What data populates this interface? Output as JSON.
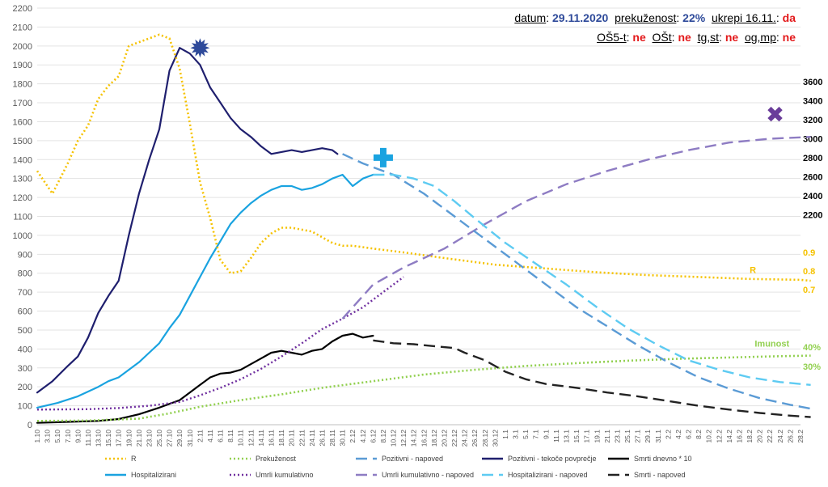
{
  "header": {
    "line1": [
      {
        "label": "datum",
        "sep": ": ",
        "value": "29.11.2020",
        "color": "blue"
      },
      {
        "label": "prekuženost",
        "sep": ": ",
        "value": "22%",
        "color": "blue"
      },
      {
        "label": "ukrepi 16.11.",
        "sep": ": ",
        "value": "da",
        "color": "red"
      }
    ],
    "line2": [
      {
        "label": "OŠ5-t",
        "sep": ": ",
        "value": "ne",
        "color": "red"
      },
      {
        "label": "OŠt",
        "sep": ": ",
        "value": "ne",
        "color": "red"
      },
      {
        "label": "tg,st",
        "sep": ": ",
        "value": "ne",
        "color": "red"
      },
      {
        "label": "og,mp",
        "sep": ": ",
        "value": "ne",
        "color": "red"
      }
    ]
  },
  "chart_data": {
    "type": "line",
    "title": "",
    "y_left": {
      "min": 0,
      "max": 2200,
      "step": 100
    },
    "y_right_top": {
      "ticks": [
        2200,
        2400,
        2600,
        2800,
        3000,
        3200,
        3400,
        3600
      ]
    },
    "y_right_R": {
      "ticks": [
        0.7,
        0.8,
        0.9
      ]
    },
    "y_right_pct": {
      "ticks": [
        "30%",
        "40%"
      ]
    },
    "x_labels": [
      "1.10",
      "3.10",
      "5.10",
      "7.10",
      "9.10",
      "11.10",
      "13.10",
      "15.10",
      "17.10",
      "19.10",
      "21.10",
      "23.10",
      "25.10",
      "27.10",
      "29.10",
      "31.10",
      "2.11",
      "4.11",
      "6.11",
      "8.11",
      "10.11",
      "12.11",
      "14.11",
      "16.11",
      "18.11",
      "20.11",
      "22.11",
      "24.11",
      "26.11",
      "28.11",
      "30.11",
      "2.12",
      "4.12",
      "6.12",
      "8.12",
      "10.12",
      "12.12",
      "14.12",
      "16.12",
      "18.12",
      "20.12",
      "22.12",
      "24.12",
      "26.12",
      "28.12",
      "30.12",
      "1.1",
      "3.1",
      "5.1",
      "7.1",
      "9.1",
      "11.1",
      "13.1",
      "15.1",
      "17.1",
      "19.1",
      "21.1",
      "23.1",
      "25.1",
      "27.1",
      "29.1",
      "31.1",
      "2.2",
      "4.2",
      "6.2",
      "8.2",
      "10.2",
      "12.2",
      "14.2",
      "16.2",
      "18.2",
      "20.2",
      "22.2",
      "24.2",
      "26.2",
      "28.2"
    ],
    "series": [
      {
        "name": "Pozitivni - tekoče povprečje",
        "color": "#1f1f6e",
        "dash": "",
        "width": 2.2,
        "axis": "left",
        "points": [
          [
            0,
            170
          ],
          [
            3,
            230
          ],
          [
            6,
            310
          ],
          [
            8,
            360
          ],
          [
            10,
            460
          ],
          [
            12,
            590
          ],
          [
            14,
            680
          ],
          [
            16,
            760
          ],
          [
            18,
            1000
          ],
          [
            20,
            1220
          ],
          [
            22,
            1400
          ],
          [
            24,
            1560
          ],
          [
            26,
            1870
          ],
          [
            28,
            1990
          ],
          [
            30,
            1960
          ],
          [
            32,
            1900
          ],
          [
            34,
            1780
          ],
          [
            36,
            1700
          ],
          [
            38,
            1620
          ],
          [
            40,
            1560
          ],
          [
            42,
            1520
          ],
          [
            44,
            1470
          ],
          [
            46,
            1430
          ],
          [
            48,
            1440
          ],
          [
            50,
            1450
          ],
          [
            52,
            1440
          ],
          [
            54,
            1450
          ],
          [
            56,
            1460
          ],
          [
            58,
            1450
          ],
          [
            59,
            1430
          ]
        ]
      },
      {
        "name": "Hospitalizirani",
        "color": "#1aa3e0",
        "dash": "",
        "width": 2.2,
        "axis": "left",
        "points": [
          [
            0,
            90
          ],
          [
            4,
            115
          ],
          [
            8,
            150
          ],
          [
            12,
            200
          ],
          [
            14,
            230
          ],
          [
            16,
            250
          ],
          [
            18,
            290
          ],
          [
            20,
            330
          ],
          [
            22,
            380
          ],
          [
            24,
            430
          ],
          [
            26,
            510
          ],
          [
            28,
            580
          ],
          [
            30,
            680
          ],
          [
            32,
            780
          ],
          [
            34,
            880
          ],
          [
            36,
            970
          ],
          [
            38,
            1060
          ],
          [
            40,
            1120
          ],
          [
            42,
            1170
          ],
          [
            44,
            1210
          ],
          [
            46,
            1240
          ],
          [
            48,
            1260
          ],
          [
            50,
            1260
          ],
          [
            52,
            1240
          ],
          [
            54,
            1250
          ],
          [
            56,
            1270
          ],
          [
            58,
            1300
          ],
          [
            60,
            1320
          ],
          [
            62,
            1260
          ],
          [
            64,
            1300
          ],
          [
            66,
            1320
          ]
        ]
      },
      {
        "name": "Smrti dnevno * 10",
        "color": "#000000",
        "dash": "",
        "width": 2.2,
        "axis": "left",
        "points": [
          [
            0,
            10
          ],
          [
            6,
            15
          ],
          [
            12,
            20
          ],
          [
            16,
            30
          ],
          [
            20,
            55
          ],
          [
            24,
            90
          ],
          [
            28,
            130
          ],
          [
            32,
            210
          ],
          [
            34,
            250
          ],
          [
            36,
            270
          ],
          [
            38,
            275
          ],
          [
            40,
            290
          ],
          [
            42,
            320
          ],
          [
            44,
            350
          ],
          [
            46,
            380
          ],
          [
            48,
            390
          ],
          [
            50,
            380
          ],
          [
            52,
            370
          ],
          [
            54,
            390
          ],
          [
            56,
            400
          ],
          [
            58,
            440
          ],
          [
            60,
            470
          ],
          [
            62,
            480
          ],
          [
            64,
            460
          ],
          [
            66,
            470
          ]
        ]
      },
      {
        "name": "R",
        "color": "#f5c200",
        "dash": "2,3",
        "width": 2.6,
        "axis": "left",
        "points": [
          [
            0,
            1340
          ],
          [
            3,
            1220
          ],
          [
            6,
            1380
          ],
          [
            8,
            1500
          ],
          [
            10,
            1580
          ],
          [
            12,
            1720
          ],
          [
            14,
            1790
          ],
          [
            16,
            1840
          ],
          [
            18,
            2000
          ],
          [
            20,
            2020
          ],
          [
            22,
            2040
          ],
          [
            24,
            2060
          ],
          [
            26,
            2040
          ],
          [
            28,
            1880
          ],
          [
            30,
            1590
          ],
          [
            32,
            1280
          ],
          [
            34,
            1090
          ],
          [
            36,
            870
          ],
          [
            38,
            800
          ],
          [
            40,
            810
          ],
          [
            42,
            880
          ],
          [
            44,
            960
          ],
          [
            46,
            1010
          ],
          [
            48,
            1040
          ],
          [
            50,
            1040
          ],
          [
            52,
            1030
          ],
          [
            54,
            1020
          ],
          [
            56,
            990
          ],
          [
            58,
            960
          ],
          [
            60,
            945
          ],
          [
            62,
            945
          ],
          [
            66,
            930
          ],
          [
            72,
            910
          ],
          [
            80,
            880
          ],
          [
            90,
            845
          ],
          [
            100,
            825
          ],
          [
            110,
            805
          ],
          [
            120,
            790
          ],
          [
            130,
            780
          ],
          [
            140,
            770
          ],
          [
            150,
            765
          ],
          [
            152,
            760
          ]
        ]
      },
      {
        "name": "Prekuženost",
        "color": "#92d050",
        "dash": "2,3",
        "width": 2.6,
        "axis": "left",
        "points": [
          [
            0,
            20
          ],
          [
            10,
            22
          ],
          [
            20,
            32
          ],
          [
            26,
            60
          ],
          [
            32,
            95
          ],
          [
            40,
            130
          ],
          [
            48,
            160
          ],
          [
            56,
            195
          ],
          [
            66,
            230
          ],
          [
            76,
            265
          ],
          [
            86,
            290
          ],
          [
            96,
            310
          ],
          [
            106,
            325
          ],
          [
            116,
            338
          ],
          [
            126,
            348
          ],
          [
            136,
            355
          ],
          [
            146,
            362
          ],
          [
            152,
            365
          ]
        ]
      },
      {
        "name": "Umrli kumulativno",
        "color": "#7030a0",
        "dash": "2,3",
        "width": 2.4,
        "axis": "left",
        "points": [
          [
            0,
            80
          ],
          [
            10,
            82
          ],
          [
            16,
            88
          ],
          [
            22,
            100
          ],
          [
            28,
            120
          ],
          [
            32,
            155
          ],
          [
            36,
            195
          ],
          [
            40,
            240
          ],
          [
            44,
            295
          ],
          [
            48,
            360
          ],
          [
            52,
            430
          ],
          [
            56,
            505
          ],
          [
            60,
            560
          ],
          [
            64,
            620
          ],
          [
            68,
            700
          ],
          [
            72,
            780
          ]
        ]
      },
      {
        "name": "Umrli kumulativno - napoved",
        "color": "#8e7cc3",
        "dash": "14,7",
        "width": 2.4,
        "axis": "left",
        "points": [
          [
            60,
            560
          ],
          [
            66,
            740
          ],
          [
            72,
            830
          ],
          [
            80,
            930
          ],
          [
            88,
            1060
          ],
          [
            96,
            1180
          ],
          [
            104,
            1270
          ],
          [
            112,
            1340
          ],
          [
            120,
            1400
          ],
          [
            128,
            1450
          ],
          [
            136,
            1490
          ],
          [
            144,
            1510
          ],
          [
            152,
            1520
          ]
        ]
      },
      {
        "name": "Pozitivni - napoved",
        "color": "#5b9bd5",
        "dash": "14,7",
        "width": 2.4,
        "axis": "left",
        "points": [
          [
            60,
            1430
          ],
          [
            64,
            1380
          ],
          [
            70,
            1320
          ],
          [
            76,
            1220
          ],
          [
            82,
            1100
          ],
          [
            88,
            980
          ],
          [
            94,
            860
          ],
          [
            100,
            740
          ],
          [
            106,
            620
          ],
          [
            112,
            520
          ],
          [
            118,
            420
          ],
          [
            124,
            330
          ],
          [
            130,
            250
          ],
          [
            136,
            190
          ],
          [
            142,
            140
          ],
          [
            148,
            105
          ],
          [
            152,
            85
          ]
        ]
      },
      {
        "name": "Hospitalizirani - napoved",
        "color": "#5ecbf2",
        "dash": "14,7",
        "width": 2.4,
        "axis": "left",
        "points": [
          [
            66,
            1320
          ],
          [
            70,
            1320
          ],
          [
            74,
            1300
          ],
          [
            78,
            1260
          ],
          [
            82,
            1180
          ],
          [
            86,
            1090
          ],
          [
            92,
            960
          ],
          [
            98,
            850
          ],
          [
            104,
            740
          ],
          [
            110,
            620
          ],
          [
            116,
            510
          ],
          [
            122,
            420
          ],
          [
            128,
            340
          ],
          [
            134,
            290
          ],
          [
            140,
            250
          ],
          [
            146,
            225
          ],
          [
            152,
            210
          ]
        ]
      },
      {
        "name": "Smrti - napoved",
        "color": "#222222",
        "dash": "14,7",
        "width": 2.4,
        "axis": "left",
        "points": [
          [
            66,
            445
          ],
          [
            70,
            430
          ],
          [
            74,
            425
          ],
          [
            78,
            415
          ],
          [
            82,
            405
          ],
          [
            84,
            380
          ],
          [
            88,
            340
          ],
          [
            92,
            280
          ],
          [
            96,
            240
          ],
          [
            100,
            215
          ],
          [
            106,
            195
          ],
          [
            112,
            170
          ],
          [
            118,
            150
          ],
          [
            124,
            125
          ],
          [
            130,
            100
          ],
          [
            136,
            80
          ],
          [
            142,
            62
          ],
          [
            148,
            48
          ],
          [
            152,
            40
          ]
        ]
      }
    ],
    "annotations": [
      {
        "text": "R",
        "color": "#f5c200",
        "at": [
          140,
          800
        ]
      },
      {
        "text": "Imunost",
        "color": "#92d050",
        "at": [
          141,
          412
        ]
      }
    ],
    "markers": [
      {
        "symbol": "starburst",
        "color": "#2e4a9a",
        "at": [
          32,
          1990
        ]
      },
      {
        "symbol": "plus",
        "color": "#1aa3e0",
        "at": [
          68,
          1410
        ]
      },
      {
        "symbol": "cross",
        "color": "#6a3d9a",
        "at": [
          145,
          1640
        ]
      }
    ],
    "legend": {
      "position": "bottom",
      "rows": [
        [
          {
            "name": "R",
            "color": "#f5c200",
            "dash": "2,3"
          },
          {
            "name": "Prekuženost",
            "color": "#92d050",
            "dash": "2,3"
          },
          {
            "name": "Pozitivni - napoved",
            "color": "#5b9bd5",
            "dash": "14,7"
          },
          {
            "name": "Pozitivni - tekoče povprečje",
            "color": "#1f1f6e",
            "dash": ""
          },
          {
            "name": "Smrti dnevno * 10",
            "color": "#000000",
            "dash": ""
          }
        ],
        [
          {
            "name": "Hospitalizirani",
            "color": "#1aa3e0",
            "dash": ""
          },
          {
            "name": "Umrli kumulativno",
            "color": "#7030a0",
            "dash": "2,3"
          },
          {
            "name": "Umrli kumulativno - napoved",
            "color": "#8e7cc3",
            "dash": "14,7"
          },
          {
            "name": "Hospitalizirani - napoved",
            "color": "#5ecbf2",
            "dash": "14,7"
          },
          {
            "name": "Smrti - napoved",
            "color": "#222222",
            "dash": "14,7"
          }
        ]
      ]
    }
  }
}
